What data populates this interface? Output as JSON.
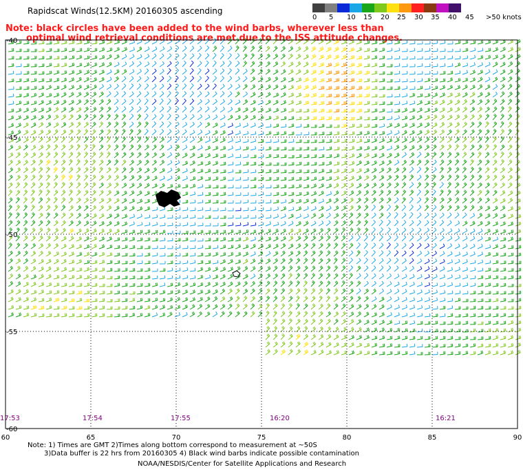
{
  "header": {
    "title": "Rapidscat Winds(12.5KM) 20160305 ascending",
    "note_line1": "Note: black circles have been added to the wind barbs, wherever less than",
    "note_line2": "optimal wind retrieval conditions are met due to the ISS attitude changes."
  },
  "color_scale": {
    "labels": [
      "0",
      "5",
      "10",
      "15",
      "20",
      "25",
      "30",
      "35",
      "40",
      "45",
      ">50 knots"
    ],
    "colors": [
      "#404040",
      "#808080",
      "#0a2ad8",
      "#19a7e8",
      "#19a619",
      "#7fc81c",
      "#ffe010",
      "#ff9a10",
      "#ff2020",
      "#8a3a10",
      "#c010c0",
      "#40106a"
    ]
  },
  "map": {
    "lat_labels": [
      "-40",
      "-45",
      "-50",
      "-55",
      "-60"
    ],
    "lon_labels": [
      "60",
      "65",
      "70",
      "75",
      "80",
      "85",
      "90"
    ],
    "time_labels": [
      "17:53",
      "17:54",
      "17:55",
      "16:20",
      "16:21"
    ]
  },
  "footer": {
    "line1": "Note: 1) Times are GMT 2)Times along bottom correspond to measurement at ~50S",
    "line2": "3)Data buffer is 22 hrs from 20160305 4) Black wind barbs indicate possible contamination",
    "credit": "NOAA/NESDIS/Center for Satellite Applications and Research"
  }
}
